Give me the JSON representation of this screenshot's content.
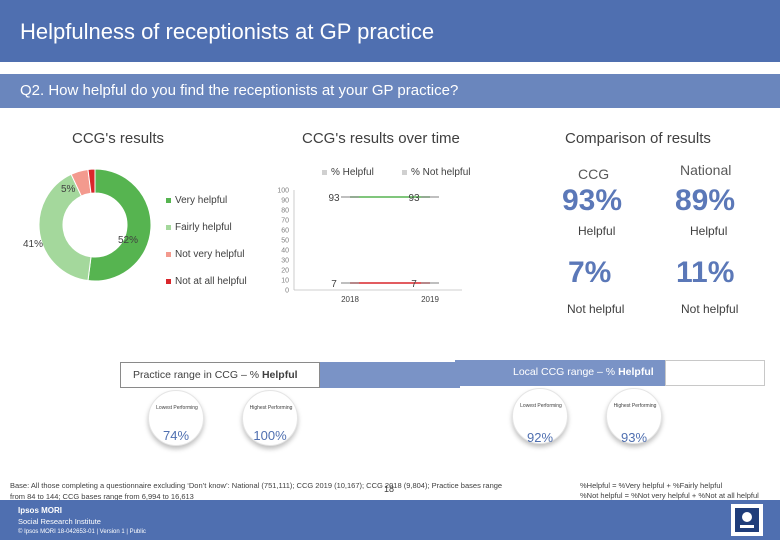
{
  "header": {
    "title": "Helpfulness of receptionists at GP practice",
    "question": "Q2. How helpful do you find the receptionists at your GP practice?"
  },
  "ccg_results": {
    "heading": "CCG's results",
    "legend": [
      "Very helpful",
      "Fairly helpful",
      "Not very helpful",
      "Not at all helpful"
    ],
    "slice_labels": [
      "52%",
      "41%",
      "5%"
    ]
  },
  "over_time": {
    "heading": "CCG's results over time",
    "legend": [
      "% Helpful",
      "% Not helpful"
    ],
    "point_labels": {
      "helpful": [
        "93",
        "93"
      ],
      "not_helpful": [
        "7",
        "7"
      ]
    }
  },
  "comparison": {
    "heading": "Comparison of results",
    "ccg_label": "CCG",
    "national_label": "National",
    "ccg_helpful": "93%",
    "national_helpful": "89%",
    "helpful_label": "Helpful",
    "ccg_not_helpful": "7%",
    "national_not_helpful": "11%",
    "not_helpful_label": "Not helpful"
  },
  "practice_range": {
    "title_prefix": "Practice range in CCG – % ",
    "title_bold": "Helpful",
    "lowest_label": "Lowest Performing",
    "highest_label": "Highest Performing",
    "lowest_value": "74%",
    "highest_value": "100%"
  },
  "local_range": {
    "title_prefix": "Local CCG range – % ",
    "title_bold": "Helpful",
    "lowest_label": "Lowest Performing",
    "highest_label": "Highest Performing",
    "lowest_value": "92%",
    "highest_value": "93%"
  },
  "footer": {
    "base_note_1": "Base: All those completing a questionnaire excluding ‘Don’t know’: National (751,111); CCG 2019 (10,167); CCG 2018 (9,804); Practice bases range",
    "base_note_2": "from 84 to 144; CCG bases range from 6,994 to 16,613",
    "def_1": "%Helpful = %Very helpful + %Fairly helpful",
    "def_2": "%Not helpful = %Not very helpful + %Not at all helpful",
    "page_number": "18",
    "brand_1": "Ipsos MORI",
    "brand_2": "Social Research Institute",
    "copyright": "© Ipsos MORI    18-042653-01 | Version 1 | Public"
  },
  "colors": {
    "very_helpful": "#56b450",
    "fairly_helpful": "#a4d89c",
    "not_very_helpful": "#f39a8e",
    "not_at_all_helpful": "#d9262b",
    "helpful_line": "#56b450",
    "not_helpful_line": "#d9262b",
    "accent_blue": "#4f6fb0"
  },
  "chart_data": [
    {
      "type": "pie",
      "title": "CCG's results",
      "categories": [
        "Very helpful",
        "Fairly helpful",
        "Not very helpful",
        "Not at all helpful"
      ],
      "values": [
        52,
        41,
        5,
        2
      ],
      "data_labels": [
        "52%",
        "41%",
        "5%",
        ""
      ],
      "style": "donut"
    },
    {
      "type": "line",
      "title": "CCG's results over time",
      "x": [
        "2018",
        "2019"
      ],
      "series": [
        {
          "name": "% Helpful",
          "values": [
            93,
            93
          ]
        },
        {
          "name": "% Not helpful",
          "values": [
            7,
            7
          ]
        }
      ],
      "ylim": [
        0,
        100
      ],
      "yticks": [
        "0",
        "10",
        "20",
        "30",
        "40",
        "50",
        "60",
        "70",
        "80",
        "90",
        "100"
      ]
    }
  ]
}
